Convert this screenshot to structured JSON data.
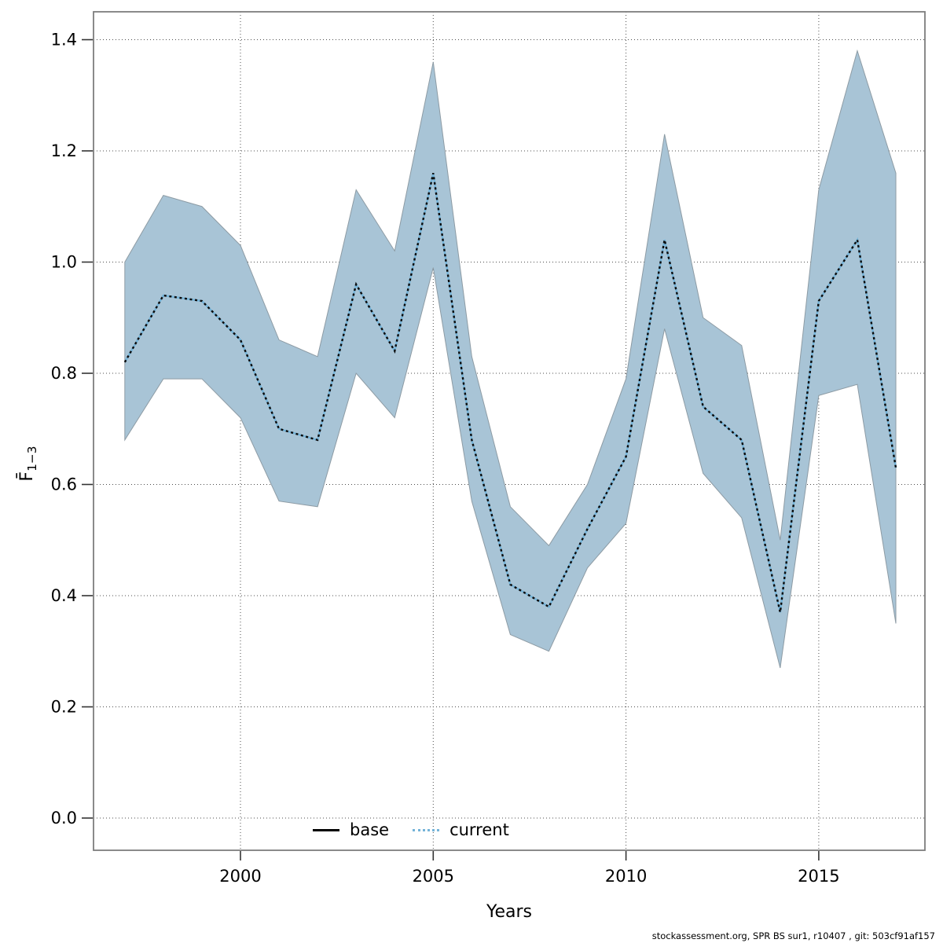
{
  "chart_data": {
    "type": "line",
    "title": "",
    "xlabel": "Years",
    "ylabel_main": "F̄",
    "ylabel_sub": "1−3",
    "x": [
      1997,
      1998,
      1999,
      2000,
      2001,
      2002,
      2003,
      2004,
      2005,
      2006,
      2007,
      2008,
      2009,
      2010,
      2011,
      2012,
      2013,
      2014,
      2015,
      2016,
      2017
    ],
    "series": [
      {
        "name": "current",
        "style": "dotted",
        "values": [
          0.82,
          0.94,
          0.93,
          0.86,
          0.7,
          0.68,
          0.96,
          0.84,
          1.16,
          0.68,
          0.42,
          0.38,
          0.52,
          0.65,
          1.04,
          0.74,
          0.68,
          0.37,
          0.93,
          1.04,
          0.63
        ]
      }
    ],
    "band": {
      "name": "confidence-interval",
      "upper": [
        1.0,
        1.12,
        1.1,
        1.03,
        0.86,
        0.83,
        1.13,
        1.02,
        1.36,
        0.83,
        0.56,
        0.49,
        0.6,
        0.79,
        1.23,
        0.9,
        0.85,
        0.5,
        1.13,
        1.38,
        1.16
      ],
      "lower": [
        0.68,
        0.79,
        0.79,
        0.72,
        0.57,
        0.56,
        0.8,
        0.72,
        0.99,
        0.57,
        0.33,
        0.3,
        0.45,
        0.53,
        0.88,
        0.62,
        0.54,
        0.27,
        0.76,
        0.78,
        0.35
      ]
    },
    "axes": {
      "y_ticks": [
        {
          "label": "0.0",
          "value": 0.0
        },
        {
          "label": "0.2",
          "value": 0.2
        },
        {
          "label": "0.4",
          "value": 0.4
        },
        {
          "label": "0.6",
          "value": 0.6
        },
        {
          "label": "0.8",
          "value": 0.8
        },
        {
          "label": "1.0",
          "value": 1.0
        },
        {
          "label": "1.2",
          "value": 1.2
        },
        {
          "label": "1.4",
          "value": 1.4
        }
      ],
      "x_ticks": [
        {
          "label": "2000",
          "value": 2000
        },
        {
          "label": "2005",
          "value": 2005
        },
        {
          "label": "2010",
          "value": 2010
        },
        {
          "label": "2015",
          "value": 2015
        }
      ],
      "xlim": [
        1996.2,
        2017.8
      ],
      "ylim": [
        -0.06,
        1.45
      ]
    },
    "grid": "dotted",
    "legend_position": "bottom-center"
  },
  "legend": {
    "items": [
      {
        "label": "base",
        "style": "solid-black"
      },
      {
        "label": "current",
        "style": "dotted-blue"
      }
    ]
  },
  "footer": {
    "text": "stockassessment.org, SPR BS sur1, r10407 , git: 503cf91af157"
  },
  "colors": {
    "band_fill": "#a8c4d6",
    "band_edge": "#8d9ba4",
    "current_line_blue": "#74b3d8",
    "current_line_dot": "#0b0b0b",
    "base_line": "#000000",
    "grid": "#4d4d4d",
    "plot_border": "#7d7d7d"
  }
}
